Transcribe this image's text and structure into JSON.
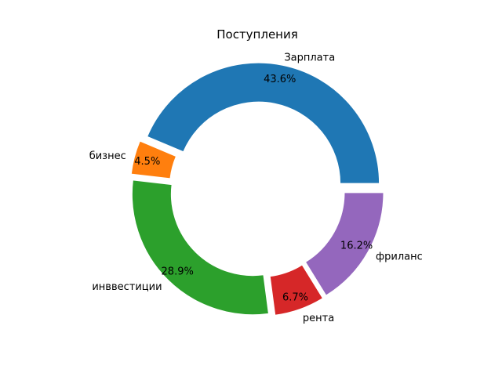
{
  "chart_data": {
    "type": "pie",
    "variant": "donut",
    "title": "Поступления",
    "labels": [
      "Зарплата",
      "бизнес",
      "инввестиции",
      "рента",
      "фриланс"
    ],
    "values": [
      43.6,
      4.5,
      28.9,
      6.7,
      16.2
    ],
    "value_labels": [
      "43.6%",
      "4.5%",
      "28.9%",
      "6.7%",
      "16.2%"
    ],
    "colors": [
      "#1f77b4",
      "#ff7f0e",
      "#2ca02c",
      "#d62728",
      "#9467bd"
    ],
    "start_angle_deg": 0,
    "direction": "counterclockwise",
    "exploded": true,
    "hole": true
  }
}
